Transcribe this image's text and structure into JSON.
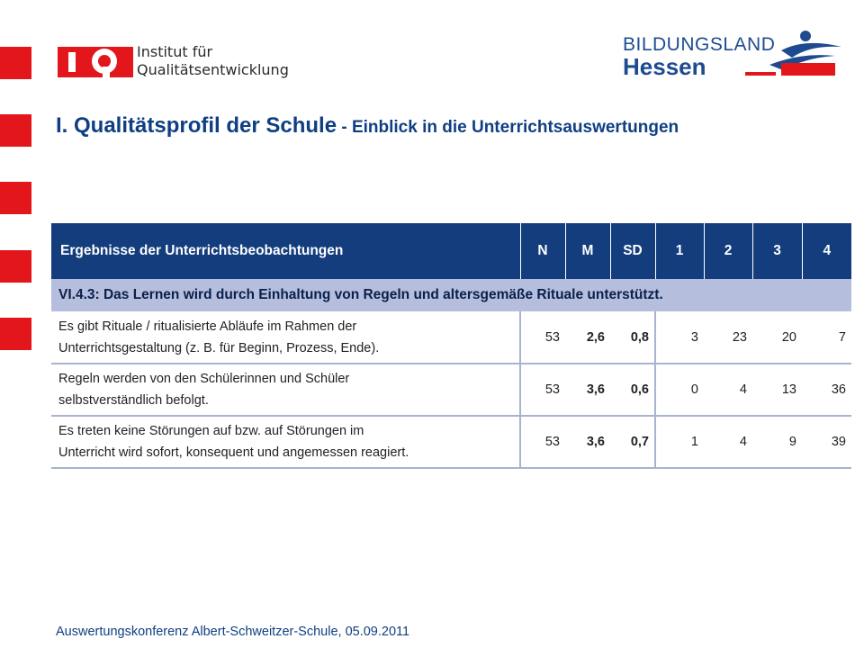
{
  "logos": {
    "iq_line1": "Institut für",
    "iq_line2": "Qualitätsentwicklung",
    "hessen_line1": "BILDUNGSLAND",
    "hessen_line2": "Hessen"
  },
  "title": {
    "main": "I. Qualitätsprofil der Schule",
    "sep": " - ",
    "sub": "Einblick in die Unterrichtsauswertungen"
  },
  "table": {
    "headers": [
      "Ergebnisse der Unterrichtsbeobachtungen",
      "N",
      "M",
      "SD",
      "1",
      "2",
      "3",
      "4"
    ],
    "section": "VI.4.3: Das Lernen wird durch Einhaltung von Regeln und altersgemäße Rituale unterstützt.",
    "rows": [
      {
        "line1": "Es gibt Rituale / ritualisierte Abläufe im Rahmen der",
        "line2": "Unterrichtsgestaltung (z. B. für Beginn, Prozess, Ende).",
        "n": "53",
        "m": "2,6",
        "sd": "0,8",
        "c1": "3",
        "c2": "23",
        "c3": "20",
        "c4": "7"
      },
      {
        "line1": "Regeln werden von den Schülerinnen und Schüler",
        "line2": "selbstverständlich befolgt.",
        "n": "53",
        "m": "3,6",
        "sd": "0,6",
        "c1": "0",
        "c2": "4",
        "c3": "13",
        "c4": "36"
      },
      {
        "line1": "Es treten keine Störungen auf bzw. auf Störungen im",
        "line2": "Unterricht wird sofort, konsequent und angemessen reagiert.",
        "n": "53",
        "m": "3,6",
        "sd": "0,7",
        "c1": "1",
        "c2": "4",
        "c3": "9",
        "c4": "39"
      }
    ]
  },
  "footer": "Auswertungskonferenz Albert-Schweitzer-Schule, 05.09.2011",
  "colors": {
    "accent_red": "#e3161b",
    "header_blue": "#133d7c",
    "section_bg": "#b5bedc",
    "title_blue": "#0f3f82"
  }
}
